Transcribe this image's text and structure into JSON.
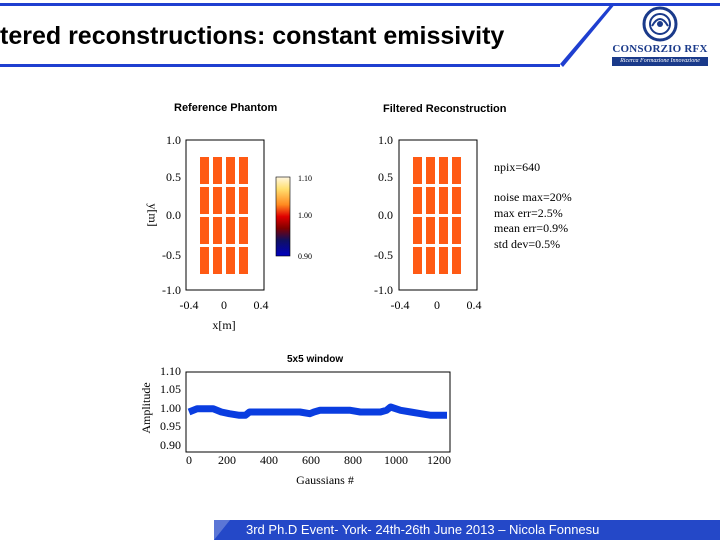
{
  "slide": {
    "title": "tered reconstructions: constant emissivity",
    "footer": "3rd Ph.D Event- York- 24th-26th June 2013 – Nicola Fonnesu"
  },
  "logo": {
    "name": "CONSORZIO RFX",
    "tagline": "Ricerca Formazione Innovazione"
  },
  "colors": {
    "header_blue": "#1f3fd0",
    "footer_blue": "#2448c8",
    "bar_orange": "#ff5a14",
    "series_blue": "#0a3de0"
  },
  "chart_data": [
    {
      "type": "heatmap",
      "title": "Reference Phantom",
      "xlabel": "x[m]",
      "ylabel": "y[m]",
      "xticks": [
        "-0.4",
        "0",
        "0.4"
      ],
      "yticks": [
        "1.0",
        "0.5",
        "0.0",
        "-0.5",
        "-1.0"
      ],
      "layout": {
        "columns": 4,
        "rows": 4
      },
      "colorbar": {
        "ticks": [
          "1.10",
          "1.00",
          "0.90"
        ]
      }
    },
    {
      "type": "heatmap",
      "title": "Filtered Reconstruction",
      "xticks": [
        "-0.4",
        "0",
        "0.4"
      ],
      "yticks": [
        "1.0",
        "0.5",
        "0.0",
        "-0.5",
        "-1.0"
      ],
      "layout": {
        "columns": 4,
        "rows": 4
      },
      "annotations": [
        "npix=640",
        "noise max=20%",
        "max err=2.5%",
        "mean err=0.9%",
        "std dev=0.5%"
      ]
    },
    {
      "type": "line",
      "title": "5x5 window",
      "xlabel": "Gaussians #",
      "ylabel": "Amplitude",
      "xticks": [
        "0",
        "200",
        "400",
        "600",
        "800",
        "1000",
        "1200"
      ],
      "yticks": [
        "1.10",
        "1.05",
        "1.00",
        "0.95",
        "0.90"
      ],
      "xlim": [
        0,
        1280
      ],
      "ylim": [
        0.88,
        1.12
      ],
      "series": [
        {
          "x": [
            0,
            40,
            80,
            120,
            160,
            200,
            250,
            280,
            300,
            350,
            400,
            450,
            500,
            550,
            600,
            620,
            650,
            700,
            750,
            800,
            850,
            900,
            950,
            980,
            1000,
            1050,
            1100,
            1150,
            1200,
            1240,
            1280
          ],
          "y": [
            1.0,
            1.01,
            1.01,
            1.01,
            1.0,
            0.995,
            0.99,
            0.99,
            1.0,
            1.0,
            1.0,
            1.0,
            1.0,
            1.0,
            0.995,
            1.0,
            1.005,
            1.005,
            1.005,
            1.005,
            1.0,
            1.0,
            1.0,
            1.005,
            1.015,
            1.005,
            1.0,
            0.995,
            0.99,
            0.99,
            0.99
          ]
        }
      ]
    }
  ]
}
